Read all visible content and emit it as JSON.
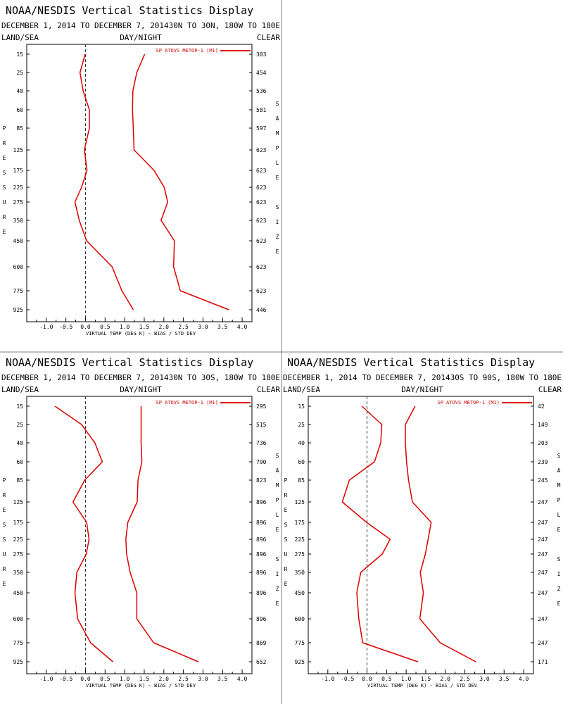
{
  "page": {
    "title": "NOAA/NESDIS Vertical Statistics Display",
    "colors": {
      "series": "#dd0000",
      "frame": "#000000",
      "divider": "#808080",
      "legend_text": "#cc0000"
    }
  },
  "chart_data": [
    {
      "type": "line",
      "title": "NOAA/NESDIS Vertical Statistics Display",
      "subtitle": "DECEMBER 1, 2014 TO DECEMBER 7, 201430N TO 30N, 180W TO 180E",
      "top_labels": {
        "left": "LAND/SEA",
        "center": "DAY/NIGHT",
        "right": "CLEAR"
      },
      "xlabel": "VIRTUAL TEMP (DEG K) - BIAS / STD DEV",
      "ylabel_left": "PRESSURE",
      "ylabel_right": "SAMPLE SIZE",
      "xlim": [
        -1.5,
        4.25
      ],
      "xticks": [
        -1.0,
        -0.5,
        0.0,
        0.5,
        1.0,
        1.5,
        2.0,
        2.5,
        3.0,
        3.5,
        4.0
      ],
      "xtick_labels": [
        "-1.0",
        "-0.5",
        "0.0",
        "0.5",
        "1.0",
        "1.5",
        "2.0",
        "2.5",
        "3.0",
        "3.5",
        "4.0"
      ],
      "pressure_levels": [
        15,
        25,
        40,
        60,
        85,
        125,
        175,
        225,
        275,
        350,
        450,
        600,
        775,
        925
      ],
      "sample_size": [
        "303",
        "454",
        "536",
        "581",
        "597",
        "623",
        "623",
        "623",
        "623",
        "623",
        "623",
        "623",
        "623",
        "446"
      ],
      "legend": "SP ATOVS METOP-1 (M1)",
      "series": [
        {
          "name": "bias",
          "values": [
            -0.01,
            -0.14,
            -0.06,
            0.1,
            0.1,
            -0.03,
            0.04,
            -0.1,
            -0.27,
            -0.16,
            0.03,
            0.68,
            0.93,
            1.22
          ]
        },
        {
          "name": "std dev",
          "values": [
            1.51,
            1.31,
            1.21,
            1.2,
            1.22,
            1.24,
            1.75,
            2.01,
            2.1,
            1.93,
            2.27,
            2.25,
            2.42,
            3.66
          ]
        }
      ]
    },
    {
      "type": "line",
      "title": "NOAA/NESDIS Vertical Statistics Display",
      "subtitle": "DECEMBER 1, 2014 TO DECEMBER 7, 201430N TO 30S, 180W TO 180E",
      "top_labels": {
        "left": "LAND/SEA",
        "center": "DAY/NIGHT",
        "right": "CLEAR"
      },
      "xlabel": "VIRTUAL TEMP (DEG K) - BIAS / STD DEV",
      "ylabel_left": "PRESSURE",
      "ylabel_right": "SAMPLE SIZE",
      "xlim": [
        -1.5,
        4.25
      ],
      "xticks": [
        -1.0,
        -0.5,
        0.0,
        0.5,
        1.0,
        1.5,
        2.0,
        2.5,
        3.0,
        3.5,
        4.0
      ],
      "xtick_labels": [
        "-1.0",
        "-0.5",
        "0.0",
        "0.5",
        "1.0",
        "1.5",
        "2.0",
        "2.5",
        "3.0",
        "3.5",
        "4.0"
      ],
      "pressure_levels": [
        15,
        25,
        40,
        60,
        85,
        125,
        175,
        225,
        275,
        350,
        450,
        600,
        775,
        925
      ],
      "sample_size": [
        "295",
        "515",
        "736",
        "790",
        "823",
        "896",
        "896",
        "896",
        "896",
        "896",
        "896",
        "896",
        "869",
        "652"
      ],
      "legend": "SP ATOVS METOP-1 (M1)",
      "series": [
        {
          "name": "bias",
          "values": [
            -0.78,
            -0.1,
            0.24,
            0.43,
            -0.02,
            -0.32,
            0.03,
            0.09,
            0.02,
            -0.22,
            -0.27,
            -0.2,
            0.13,
            0.7
          ]
        },
        {
          "name": "std dev",
          "values": [
            1.42,
            1.42,
            1.42,
            1.44,
            1.34,
            1.32,
            1.08,
            1.03,
            1.05,
            1.14,
            1.31,
            1.31,
            1.74,
            2.88
          ]
        }
      ]
    },
    {
      "type": "line",
      "title": "NOAA/NESDIS Vertical Statistics Display",
      "subtitle": "DECEMBER 1, 2014 TO DECEMBER 7, 201430S TO 90S, 180W TO 180E",
      "top_labels": {
        "left": "LAND/SEA",
        "center": "DAY/NIGHT",
        "right": "CLEAR"
      },
      "xlabel": "VIRTUAL TEMP (DEG K) - BIAS / STD DEV",
      "ylabel_left": "PRESSURE",
      "ylabel_right": "SAMPLE SIZE",
      "xlim": [
        -1.5,
        4.25
      ],
      "xticks": [
        -1.0,
        -0.5,
        0.0,
        0.5,
        1.0,
        1.5,
        2.0,
        2.5,
        3.0,
        3.5,
        4.0
      ],
      "xtick_labels": [
        "-1.0",
        "-0.5",
        "0.0",
        "0.5",
        "1.0",
        "1.5",
        "2.0",
        "2.5",
        "3.0",
        "3.5",
        "4.0"
      ],
      "pressure_levels": [
        15,
        25,
        40,
        60,
        85,
        125,
        175,
        225,
        275,
        350,
        450,
        600,
        775,
        925
      ],
      "sample_size": [
        "42",
        "149",
        "203",
        "239",
        "245",
        "247",
        "247",
        "247",
        "247",
        "247",
        "247",
        "247",
        "247",
        "171"
      ],
      "legend": "SP ATOVS METOP-1 (M1)",
      "series": [
        {
          "name": "bias",
          "values": [
            -0.13,
            0.38,
            0.35,
            0.19,
            -0.45,
            -0.63,
            -0.01,
            0.59,
            0.39,
            -0.16,
            -0.26,
            -0.21,
            -0.11,
            1.3
          ]
        },
        {
          "name": "std dev",
          "values": [
            1.23,
            0.98,
            0.98,
            1.01,
            1.06,
            1.16,
            1.64,
            1.56,
            1.49,
            1.36,
            1.44,
            1.35,
            1.87,
            2.78
          ]
        }
      ]
    }
  ]
}
